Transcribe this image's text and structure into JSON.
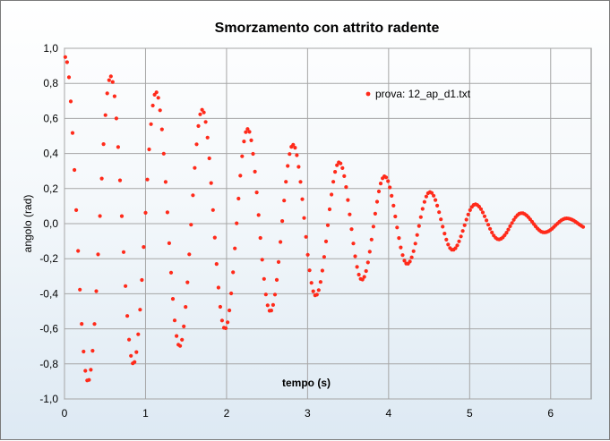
{
  "chart_data": {
    "type": "scatter",
    "title": "Smorzamento  con  attrito radente",
    "xlabel": "tempo (s)",
    "ylabel": "angolo (rad)",
    "xlim": [
      0,
      6.5
    ],
    "ylim": [
      -1.0,
      1.0
    ],
    "x_ticks": [
      "0",
      "1",
      "2",
      "3",
      "4",
      "5",
      "6"
    ],
    "y_ticks": [
      "1,0",
      "0,8",
      "0,6",
      "0,4",
      "0,2",
      "0,0",
      "-0,2",
      "-0,4",
      "-0,6",
      "-0,8",
      "-1,0"
    ],
    "grid": true,
    "legend_position": "top-right",
    "marker_color": "#ff2a1a",
    "series": [
      {
        "name": "prova: 12_ap_d1.txt",
        "x_start": 0.01,
        "x_step": 0.0225,
        "extrema": [
          {
            "x": 0.01,
            "y": 0.95
          },
          {
            "x": 0.29,
            "y": -0.9
          },
          {
            "x": 0.57,
            "y": 0.84
          },
          {
            "x": 0.85,
            "y": -0.8
          },
          {
            "x": 1.13,
            "y": 0.75
          },
          {
            "x": 1.42,
            "y": -0.7
          },
          {
            "x": 1.7,
            "y": 0.65
          },
          {
            "x": 1.98,
            "y": -0.6
          },
          {
            "x": 2.26,
            "y": 0.54
          },
          {
            "x": 2.54,
            "y": -0.5
          },
          {
            "x": 2.82,
            "y": 0.45
          },
          {
            "x": 3.1,
            "y": -0.41
          },
          {
            "x": 3.39,
            "y": 0.35
          },
          {
            "x": 3.67,
            "y": -0.32
          },
          {
            "x": 3.95,
            "y": 0.27
          },
          {
            "x": 4.23,
            "y": -0.23
          },
          {
            "x": 4.51,
            "y": 0.18
          },
          {
            "x": 4.79,
            "y": -0.15
          },
          {
            "x": 5.07,
            "y": 0.11
          },
          {
            "x": 5.36,
            "y": -0.09
          },
          {
            "x": 5.64,
            "y": 0.06
          },
          {
            "x": 5.92,
            "y": -0.05
          },
          {
            "x": 6.2,
            "y": 0.03
          },
          {
            "x": 6.48,
            "y": -0.03
          },
          {
            "x": 6.76,
            "y": 0.02
          }
        ],
        "x_end": 6.42
      }
    ]
  }
}
